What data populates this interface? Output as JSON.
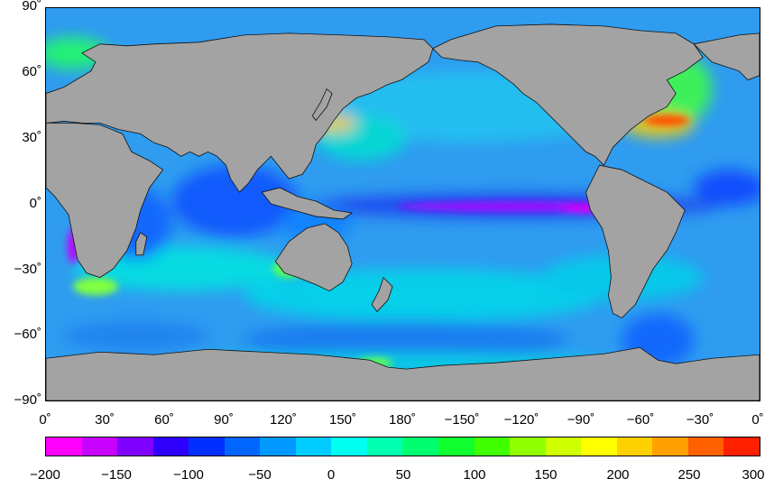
{
  "map": {
    "y_ticks": [
      "90˚",
      "60˚",
      "30˚",
      "0˚",
      "−30˚",
      "−60˚",
      "−90˚"
    ],
    "x_ticks": [
      "0˚",
      "30˚",
      "60˚",
      "90˚",
      "120˚",
      "150˚",
      "180˚",
      "−150˚",
      "−120˚",
      "−90˚",
      "−60˚",
      "−30˚",
      "0˚"
    ],
    "land_color": "#a3a3a3",
    "ocean_base_color": "#2f9cf0"
  },
  "colorbar": {
    "ticks": [
      "−200",
      "−150",
      "−100",
      "−50",
      "0",
      "50",
      "100",
      "150",
      "200",
      "250",
      "300"
    ],
    "range": [
      -200,
      300
    ],
    "colors": [
      "#ff00ff",
      "#c800ff",
      "#8000ff",
      "#3000ff",
      "#0030ff",
      "#0066ff",
      "#0099ff",
      "#00ccff",
      "#00ffee",
      "#00ffb0",
      "#00ff70",
      "#10ff30",
      "#40ff00",
      "#90ff00",
      "#d0ff00",
      "#ffff00",
      "#ffd000",
      "#ffa000",
      "#ff6000",
      "#ff2000"
    ]
  }
}
